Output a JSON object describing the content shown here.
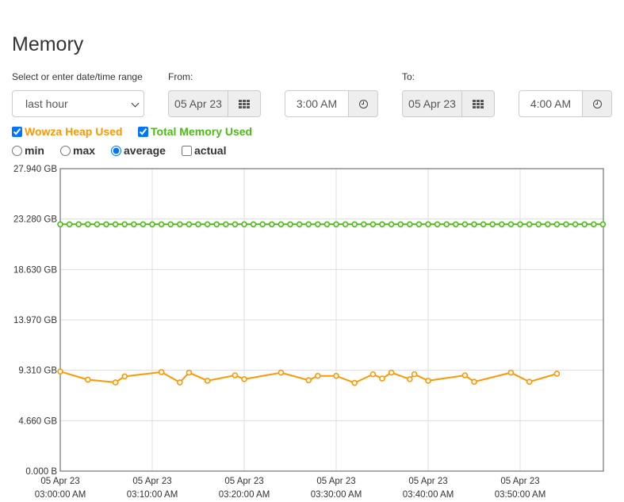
{
  "page": {
    "title": "Memory"
  },
  "range": {
    "label": "Select or enter date/time range",
    "selected": "last hour",
    "options": [
      "last hour"
    ]
  },
  "from": {
    "label": "From:",
    "date": "05 Apr 23",
    "time": "3:00 AM"
  },
  "to": {
    "label": "To:",
    "date": "05 Apr 23",
    "time": "4:00 AM"
  },
  "series_toggles": [
    {
      "label": "Wowza Heap Used",
      "checked": true,
      "color": "#ff9800"
    },
    {
      "label": "Total Memory Used",
      "checked": true,
      "color": "#4cbb17"
    }
  ],
  "aggregation": {
    "options": [
      "min",
      "max",
      "average",
      "actual"
    ],
    "selected": "average",
    "actual_checked": false
  },
  "chart_data": {
    "type": "line",
    "y_ticks": [
      "0.000 B",
      "4.660 GB",
      "9.310 GB",
      "13.970 GB",
      "18.630 GB",
      "23.280 GB",
      "27.940 GB"
    ],
    "ylim": [
      0,
      27.94
    ],
    "y_unit": "GB",
    "x_ticks": [
      {
        "date": "05 Apr 23",
        "time": "03:00:00 AM"
      },
      {
        "date": "05 Apr 23",
        "time": "03:10:00 AM"
      },
      {
        "date": "05 Apr 23",
        "time": "03:20:00 AM"
      },
      {
        "date": "05 Apr 23",
        "time": "03:30:00 AM"
      },
      {
        "date": "05 Apr 23",
        "time": "03:40:00 AM"
      },
      {
        "date": "05 Apr 23",
        "time": "03:50:00 AM"
      }
    ],
    "xlim_minutes": [
      0,
      59
    ],
    "grid": true,
    "series": [
      {
        "name": "Total Memory Used",
        "color": "#4cbb17",
        "x_minutes": [
          0,
          1,
          2,
          3,
          4,
          5,
          6,
          7,
          8,
          9,
          10,
          11,
          12,
          13,
          14,
          15,
          16,
          17,
          18,
          19,
          20,
          21,
          22,
          23,
          24,
          25,
          26,
          27,
          28,
          29,
          30,
          31,
          32,
          33,
          34,
          35,
          36,
          37,
          38,
          39,
          40,
          41,
          42,
          43,
          44,
          45,
          46,
          47,
          48,
          49,
          50,
          51,
          52,
          53,
          54,
          55,
          56,
          57,
          58,
          59
        ],
        "values": [
          22.8,
          22.8,
          22.8,
          22.8,
          22.8,
          22.8,
          22.8,
          22.8,
          22.8,
          22.8,
          22.8,
          22.8,
          22.8,
          22.8,
          22.8,
          22.8,
          22.8,
          22.8,
          22.8,
          22.8,
          22.8,
          22.8,
          22.8,
          22.8,
          22.8,
          22.8,
          22.8,
          22.8,
          22.8,
          22.8,
          22.8,
          22.8,
          22.8,
          22.8,
          22.8,
          22.8,
          22.8,
          22.8,
          22.8,
          22.8,
          22.8,
          22.8,
          22.8,
          22.8,
          22.8,
          22.8,
          22.8,
          22.8,
          22.8,
          22.8,
          22.8,
          22.8,
          22.8,
          22.8,
          22.8,
          22.8,
          22.8,
          22.8,
          22.8,
          22.8
        ]
      },
      {
        "name": "Wowza Heap Used",
        "color": "#ff9800",
        "x_minutes": [
          0,
          3,
          6,
          7,
          11,
          13,
          14,
          16,
          19,
          20,
          24,
          27,
          28,
          30,
          32,
          34,
          35,
          36,
          38,
          38.5,
          40,
          44,
          45,
          49,
          51,
          54
        ],
        "values": [
          9.2,
          8.45,
          8.2,
          8.75,
          9.15,
          8.2,
          9.1,
          8.35,
          8.85,
          8.5,
          9.1,
          8.4,
          8.8,
          8.8,
          8.15,
          8.95,
          8.55,
          9.1,
          8.5,
          8.95,
          8.35,
          8.85,
          8.25,
          9.1,
          8.25,
          9.0
        ]
      }
    ]
  }
}
